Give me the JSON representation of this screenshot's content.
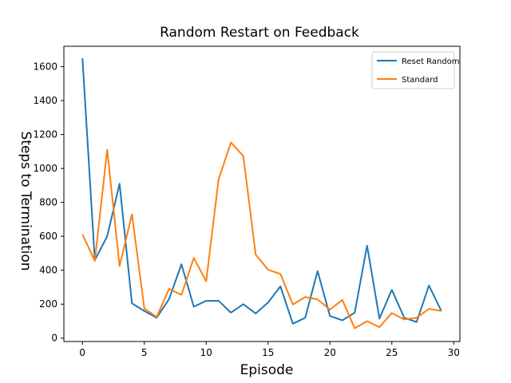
{
  "chart_data": {
    "type": "line",
    "title": "Random Restart on Feedback",
    "xlabel": "Episode",
    "ylabel": "Steps to Termination",
    "xlim": [
      -1.5,
      30.5
    ],
    "ylim": [
      -20,
      1720
    ],
    "xticks": [
      0,
      5,
      10,
      15,
      20,
      25,
      30
    ],
    "yticks": [
      0,
      200,
      400,
      600,
      800,
      1000,
      1200,
      1400,
      1600
    ],
    "grid": false,
    "legend_position": "top-right",
    "x": [
      0,
      1,
      2,
      3,
      4,
      5,
      6,
      7,
      8,
      9,
      10,
      11,
      12,
      13,
      14,
      15,
      16,
      17,
      18,
      19,
      20,
      21,
      22,
      23,
      24,
      25,
      26,
      27,
      28,
      29
    ],
    "series": [
      {
        "name": "Reset Random",
        "color": "#1f77b4",
        "values": [
          1650,
          460,
          600,
          910,
          205,
          160,
          120,
          230,
          435,
          185,
          220,
          220,
          150,
          200,
          145,
          210,
          305,
          85,
          120,
          395,
          130,
          105,
          150,
          545,
          115,
          285,
          120,
          95,
          310,
          160
        ]
      },
      {
        "name": "Standard",
        "color": "#ff7f0e",
        "values": [
          612,
          455,
          1110,
          425,
          730,
          175,
          125,
          290,
          255,
          473,
          335,
          935,
          1153,
          1073,
          492,
          403,
          378,
          198,
          242,
          228,
          168,
          225,
          58,
          100,
          65,
          148,
          110,
          120,
          172,
          160
        ]
      }
    ]
  }
}
